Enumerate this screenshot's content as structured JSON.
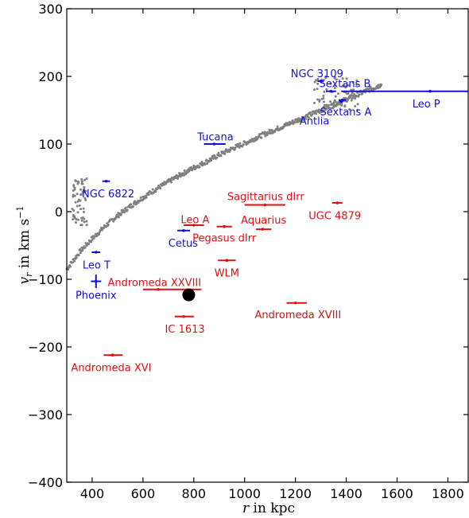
{
  "chart_data": {
    "type": "scatter",
    "xlabel": "r in kpc",
    "ylabel": "v_r in km s^-1",
    "xlabel_parts": {
      "var": "r",
      "rest": " in kpc"
    },
    "ylabel_parts": {
      "var": "v",
      "sub": "r",
      "mid": " in km s",
      "sup": "−1"
    },
    "xlim": [
      300,
      1880
    ],
    "ylim": [
      -400,
      300
    ],
    "xticks": [
      400,
      600,
      800,
      1000,
      1200,
      1400,
      1600,
      1800
    ],
    "yticks": [
      -400,
      -300,
      -200,
      -100,
      0,
      100,
      200,
      300
    ],
    "xtick_labels": [
      "400",
      "600",
      "800",
      "1000",
      "1200",
      "1400",
      "1600",
      "1800"
    ],
    "ytick_labels": [
      "−400",
      "−300",
      "−200",
      "−100",
      "0",
      "100",
      "200",
      "300"
    ],
    "colors": {
      "blue": "#1010dd",
      "red": "#dd1111",
      "model": "#808080",
      "marker": "#000000"
    },
    "marker": {
      "x": 780,
      "y": -123
    },
    "model_band": [
      [
        300,
        -85
      ],
      [
        350,
        -60
      ],
      [
        400,
        -40
      ],
      [
        450,
        -22
      ],
      [
        500,
        -6
      ],
      [
        550,
        8
      ],
      [
        600,
        21
      ],
      [
        650,
        33
      ],
      [
        700,
        44
      ],
      [
        750,
        55
      ],
      [
        800,
        65
      ],
      [
        850,
        74
      ],
      [
        900,
        84
      ],
      [
        950,
        93
      ],
      [
        1000,
        101
      ],
      [
        1050,
        110
      ],
      [
        1100,
        118
      ],
      [
        1150,
        126
      ],
      [
        1200,
        134
      ],
      [
        1250,
        142
      ],
      [
        1300,
        150
      ],
      [
        1350,
        158
      ],
      [
        1400,
        166
      ],
      [
        1450,
        174
      ],
      [
        1500,
        182
      ],
      [
        1540,
        188
      ]
    ],
    "galaxies": [
      {
        "name": "NGC 3109",
        "x": 1300,
        "xmin": 1288,
        "xmax": 1312,
        "y": 193,
        "color": "blue",
        "lx": 1285,
        "ly": 205
      },
      {
        "name": "Sextans B",
        "x": 1340,
        "xmin": 1320,
        "xmax": 1360,
        "y": 178,
        "color": "blue",
        "lx": 1395,
        "ly": 190
      },
      {
        "name": "Leo P",
        "x": 1730,
        "xmin": 1380,
        "xmax": 1880,
        "y": 178,
        "color": "blue",
        "lx": 1715,
        "ly": 160
      },
      {
        "name": "Sextans A",
        "x": 1385,
        "xmin": 1370,
        "xmax": 1400,
        "y": 165,
        "color": "blue",
        "lx": 1398,
        "ly": 148
      },
      {
        "name": "Antlia",
        "x": 1380,
        "xmin": 1372,
        "xmax": 1388,
        "y": 163,
        "color": "blue",
        "lx": 1275,
        "ly": 135
      },
      {
        "name": "Tucana",
        "x": 880,
        "xmin": 840,
        "xmax": 925,
        "y": 100,
        "color": "blue",
        "lx": 885,
        "ly": 111
      },
      {
        "name": "NGC 6822",
        "x": 455,
        "xmin": 440,
        "xmax": 470,
        "y": 45,
        "color": "blue",
        "lx": 463,
        "ly": 27
      },
      {
        "name": "Cetus",
        "x": 760,
        "xmin": 735,
        "xmax": 785,
        "y": -28,
        "color": "blue",
        "lx": 758,
        "ly": -46
      },
      {
        "name": "Leo T",
        "x": 415,
        "xmin": 398,
        "xmax": 432,
        "y": -60,
        "color": "blue",
        "lx": 417,
        "ly": -78
      },
      {
        "name": "Phoenix",
        "x": 415,
        "xmin": 395,
        "xmax": 435,
        "y": -103,
        "color": "blue",
        "lx": 415,
        "ly": -123,
        "errbar": 10
      },
      {
        "name": "Sagittarius dIrr",
        "x": 1080,
        "xmin": 1000,
        "xmax": 1160,
        "y": 10,
        "color": "red",
        "lx": 1083,
        "ly": 23
      },
      {
        "name": "UGC 4879",
        "x": 1365,
        "xmin": 1345,
        "xmax": 1385,
        "y": 13,
        "color": "red",
        "lx": 1355,
        "ly": -5
      },
      {
        "name": "Leo A",
        "x": 800,
        "xmin": 760,
        "xmax": 840,
        "y": -20,
        "color": "red",
        "lx": 805,
        "ly": -11
      },
      {
        "name": "Aquarius",
        "x": 1070,
        "xmin": 1045,
        "xmax": 1105,
        "y": -26,
        "color": "red",
        "lx": 1075,
        "ly": -12
      },
      {
        "name": "Pegasus dIrr",
        "x": 920,
        "xmin": 890,
        "xmax": 950,
        "y": -22,
        "color": "red",
        "lx": 920,
        "ly": -38
      },
      {
        "name": "WLM",
        "x": 930,
        "xmin": 895,
        "xmax": 965,
        "y": -72,
        "color": "red",
        "lx": 930,
        "ly": -90
      },
      {
        "name": "Andromeda XXVIII",
        "x": 660,
        "xmin": 600,
        "xmax": 830,
        "y": -115,
        "color": "red",
        "lx": 645,
        "ly": -104
      },
      {
        "name": "Andromeda XVIII",
        "x": 1200,
        "xmin": 1165,
        "xmax": 1245,
        "y": -135,
        "color": "red",
        "lx": 1210,
        "ly": -152
      },
      {
        "name": "IC 1613",
        "x": 760,
        "xmin": 725,
        "xmax": 800,
        "y": -155,
        "color": "red",
        "lx": 765,
        "ly": -173
      },
      {
        "name": "Andromeda XVI",
        "x": 480,
        "xmin": 445,
        "xmax": 520,
        "y": -212,
        "color": "red",
        "lx": 475,
        "ly": -230
      }
    ]
  }
}
